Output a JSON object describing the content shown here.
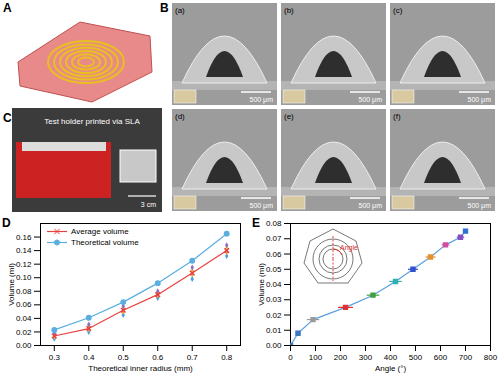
{
  "figure": {
    "panels": [
      {
        "label": "A"
      },
      {
        "label": "B",
        "subpanels": [
          "(a)",
          "(b)",
          "(c)",
          "(d)",
          "(e)",
          "(f)"
        ],
        "scale_bar": "500 μm"
      },
      {
        "label": "C",
        "caption": "Test holder printed via SLA",
        "scale_bar": "3 cm"
      },
      {
        "label": "D"
      },
      {
        "label": "E"
      }
    ]
  },
  "chart_data": [
    {
      "type": "line",
      "x_label": "Theoretical inner radius (mm)",
      "y_label": "Volume (ml)",
      "x": [
        0.3,
        0.4,
        0.5,
        0.6,
        0.7,
        0.8
      ],
      "series": [
        {
          "name": "Average volume",
          "color": "#e8403f",
          "marker": "x",
          "values": [
            0.014,
            0.025,
            0.052,
            0.075,
            0.107,
            0.14
          ]
        },
        {
          "name": "Theoretical volume",
          "color": "#5aaee0",
          "marker": "circle",
          "values": [
            0.023,
            0.041,
            0.064,
            0.092,
            0.125,
            0.165
          ]
        }
      ],
      "measurements": {
        "x": [
          0.3,
          0.3,
          0.3,
          0.3,
          0.4,
          0.4,
          0.4,
          0.4,
          0.5,
          0.5,
          0.5,
          0.5,
          0.6,
          0.6,
          0.6,
          0.6,
          0.7,
          0.7,
          0.7,
          0.7,
          0.8,
          0.8,
          0.8,
          0.8
        ],
        "values": [
          0.01,
          0.013,
          0.016,
          0.018,
          0.02,
          0.024,
          0.028,
          0.031,
          0.045,
          0.05,
          0.054,
          0.058,
          0.07,
          0.074,
          0.077,
          0.08,
          0.098,
          0.105,
          0.11,
          0.115,
          0.132,
          0.138,
          0.143,
          0.148
        ],
        "colors": [
          "#4e9fdc",
          "#f0a030",
          "#e8c840",
          "#8e6cc0",
          "#4e9fdc",
          "#f0a030",
          "#e8c840",
          "#8e6cc0",
          "#4e9fdc",
          "#f0a030",
          "#e8c840",
          "#8e6cc0",
          "#4e9fdc",
          "#f0a030",
          "#e8c840",
          "#8e6cc0",
          "#4e9fdc",
          "#f0a030",
          "#e8c840",
          "#8e6cc0",
          "#4e9fdc",
          "#f0a030",
          "#e8c840",
          "#8e6cc0"
        ]
      },
      "xlim": [
        0.26,
        0.84
      ],
      "xticks": [
        0.3,
        0.4,
        0.5,
        0.6,
        0.7,
        0.8
      ],
      "ylim": [
        0,
        0.18
      ],
      "yticks": [
        {
          "value": 0,
          "label": "0.00"
        },
        {
          "value": 0.02,
          "label": "0.02"
        },
        {
          "value": 0.04,
          "label": "0.04"
        },
        {
          "value": 0.06,
          "label": "0.06"
        },
        {
          "value": 0.08,
          "label": "0.08"
        },
        {
          "value": 0.1,
          "label": "0.10"
        },
        {
          "value": 0.12,
          "label": "0.12"
        },
        {
          "value": 0.14,
          "label": "0.14"
        },
        {
          "value": 0.16,
          "label": "0.16"
        }
      ],
      "legend": "upper left",
      "grid": false
    },
    {
      "type": "line",
      "x_label": "Angle (°)",
      "y_label": "Volume (ml)",
      "annotations": [
        "Angle"
      ],
      "x": [
        0,
        30,
        90,
        220,
        330,
        420,
        490,
        560,
        620,
        680,
        700
      ],
      "series": [
        {
          "color": "#5a9fdc",
          "marker": "square",
          "values": [
            0,
            0.008,
            0.017,
            0.025,
            0.033,
            0.042,
            0.05,
            0.058,
            0.066,
            0.071,
            0.075
          ],
          "x_error": [
            0,
            10,
            25,
            30,
            25,
            25,
            20,
            20,
            15,
            15,
            10
          ],
          "colors": [
            "#3a78c0",
            "#3a78c0",
            "#9a9a9a",
            "#e03030",
            "#40a040",
            "#30b0b0",
            "#3050d0",
            "#e09030",
            "#d050a0",
            "#8050c0",
            "#3070d0"
          ]
        }
      ],
      "xlim": [
        0,
        800
      ],
      "xticks": [
        0,
        100,
        200,
        300,
        400,
        500,
        600,
        700,
        800
      ],
      "ylim": [
        0,
        0.08
      ],
      "yticks": [
        {
          "value": 0,
          "label": "0.00"
        },
        {
          "value": 0.01,
          "label": "0.01"
        },
        {
          "value": 0.02,
          "label": "0.02"
        },
        {
          "value": 0.03,
          "label": "0.03"
        },
        {
          "value": 0.04,
          "label": "0.04"
        },
        {
          "value": 0.05,
          "label": "0.05"
        },
        {
          "value": 0.06,
          "label": "0.06"
        },
        {
          "value": 0.07,
          "label": "0.07"
        },
        {
          "value": 0.08,
          "label": "0.08"
        }
      ],
      "grid": false
    }
  ]
}
